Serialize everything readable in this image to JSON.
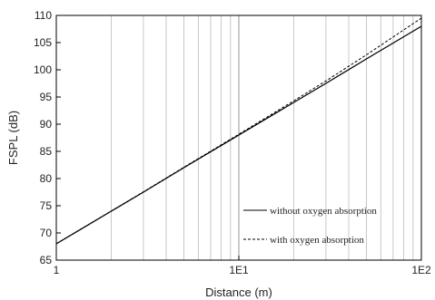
{
  "chart_data": {
    "type": "line",
    "xlabel": "Distance (m)",
    "ylabel": "FSPL (dB)",
    "xscale": "log",
    "xlim": [
      1,
      100
    ],
    "ylim": [
      65,
      110
    ],
    "grid": "vertical log grid",
    "x_ticks": [
      1,
      10,
      100
    ],
    "x_tick_labels": [
      "1",
      "1E1",
      "1E2"
    ],
    "y_ticks": [
      65,
      70,
      75,
      80,
      85,
      90,
      95,
      100,
      105,
      110
    ],
    "y_tick_labels": [
      "65",
      "70",
      "75",
      "80",
      "85",
      "90",
      "95",
      "100",
      "105",
      "110"
    ],
    "legend_position": "bottom-right",
    "series": [
      {
        "name": "without oxygen absorption",
        "line_style": "solid",
        "color": "#000000",
        "x": [
          1,
          2,
          3,
          5,
          10,
          20,
          30,
          50,
          100
        ],
        "y": [
          68,
          74.0,
          77.5,
          82.0,
          88.0,
          94.0,
          97.5,
          102.0,
          108.0
        ]
      },
      {
        "name": "with oxygen absorption",
        "line_style": "dashed",
        "color": "#000000",
        "x": [
          1,
          2,
          3,
          5,
          10,
          20,
          30,
          50,
          100
        ],
        "y": [
          68.02,
          74.03,
          77.55,
          82.08,
          88.15,
          94.3,
          97.95,
          102.75,
          109.5
        ]
      }
    ]
  }
}
